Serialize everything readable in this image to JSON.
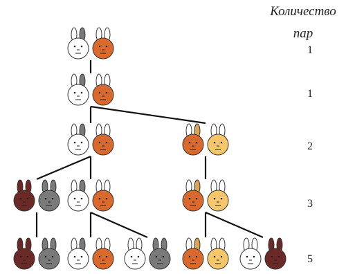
{
  "header": {
    "line1": "Количество",
    "line2": "пар"
  },
  "counts": [
    "1",
    "1",
    "2",
    "3",
    "5"
  ],
  "palette": {
    "white": "#ffffff",
    "orange": "#d9692c",
    "yellow": "#f6c66a",
    "brown": "#6b2a26",
    "gray": "#7a7a7a",
    "outline": "#333333",
    "ear_gray": "#7a7a7a",
    "ear_tan": "#d9a658"
  },
  "generations": [
    {
      "count_index": 0,
      "pairs": [
        {
          "rabbits": [
            {
              "color": "white",
              "ear": "gray"
            },
            {
              "color": "orange",
              "ear": "white"
            }
          ]
        }
      ]
    },
    {
      "count_index": 1,
      "pairs": [
        {
          "rabbits": [
            {
              "color": "white",
              "ear": "gray"
            },
            {
              "color": "orange",
              "ear": "white"
            }
          ]
        }
      ]
    },
    {
      "count_index": 2,
      "pairs": [
        {
          "rabbits": [
            {
              "color": "white",
              "ear": "gray"
            },
            {
              "color": "orange",
              "ear": "white"
            }
          ]
        },
        {
          "rabbits": [
            {
              "color": "orange",
              "ear": "tan"
            },
            {
              "color": "yellow",
              "ear": "white"
            }
          ]
        }
      ]
    },
    {
      "count_index": 3,
      "pairs": [
        {
          "rabbits": [
            {
              "color": "brown",
              "ear": "brown"
            },
            {
              "color": "gray",
              "ear": "gray"
            }
          ]
        },
        {
          "rabbits": [
            {
              "color": "white",
              "ear": "gray"
            },
            {
              "color": "orange",
              "ear": "white"
            }
          ]
        },
        {
          "rabbits": [
            {
              "color": "orange",
              "ear": "tan"
            },
            {
              "color": "yellow",
              "ear": "white"
            }
          ]
        }
      ]
    },
    {
      "count_index": 4,
      "pairs": [
        {
          "rabbits": [
            {
              "color": "brown",
              "ear": "brown"
            },
            {
              "color": "gray",
              "ear": "gray"
            }
          ]
        },
        {
          "rabbits": [
            {
              "color": "white",
              "ear": "gray"
            },
            {
              "color": "orange",
              "ear": "white"
            }
          ]
        },
        {
          "rabbits": [
            {
              "color": "white",
              "ear": "white"
            },
            {
              "color": "gray",
              "ear": "gray"
            }
          ]
        },
        {
          "rabbits": [
            {
              "color": "orange",
              "ear": "tan"
            },
            {
              "color": "yellow",
              "ear": "white"
            }
          ]
        },
        {
          "rabbits": [
            {
              "color": "white",
              "ear": "white"
            },
            {
              "color": "brown",
              "ear": "brown"
            }
          ]
        }
      ]
    }
  ],
  "links": [
    {
      "from": [
        0,
        0
      ],
      "to": [
        1,
        0
      ]
    },
    {
      "from": [
        1,
        0
      ],
      "to": [
        2,
        0
      ]
    },
    {
      "from": [
        1,
        0
      ],
      "to": [
        2,
        1
      ]
    },
    {
      "from": [
        2,
        0
      ],
      "to": [
        3,
        0
      ]
    },
    {
      "from": [
        2,
        0
      ],
      "to": [
        3,
        1
      ]
    },
    {
      "from": [
        2,
        1
      ],
      "to": [
        3,
        2
      ]
    },
    {
      "from": [
        3,
        0
      ],
      "to": [
        4,
        0
      ]
    },
    {
      "from": [
        3,
        1
      ],
      "to": [
        4,
        1
      ]
    },
    {
      "from": [
        3,
        1
      ],
      "to": [
        4,
        2
      ]
    },
    {
      "from": [
        3,
        2
      ],
      "to": [
        4,
        3
      ]
    },
    {
      "from": [
        3,
        2
      ],
      "to": [
        4,
        4
      ]
    }
  ]
}
